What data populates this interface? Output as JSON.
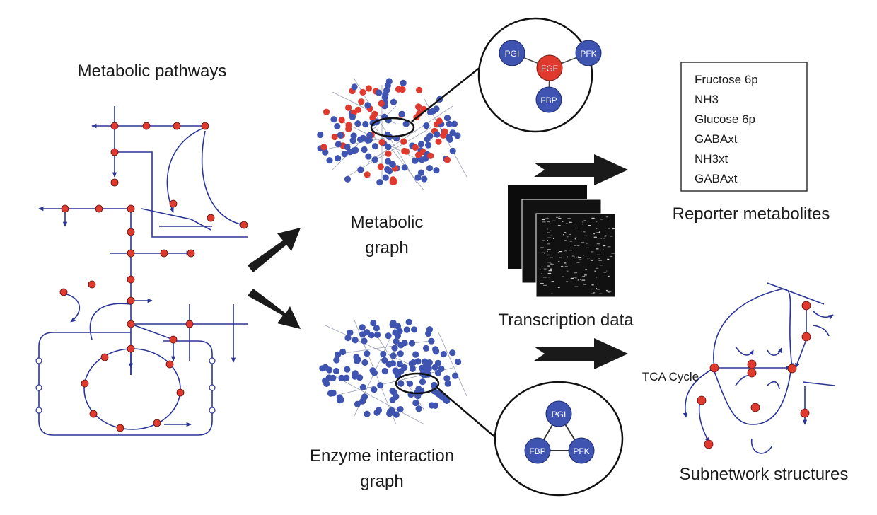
{
  "panels": {
    "metabolic_pathways": "Metabolic pathways",
    "metabolic_graph": [
      "Metabolic",
      "graph"
    ],
    "enzyme_graph": [
      "Enzyme interaction",
      "graph"
    ],
    "transcription": "Transcription data",
    "reporter": "Reporter metabolites",
    "subnetwork": "Subnetwork structures",
    "tca": "TCA Cycle"
  },
  "reporter_list": [
    "Fructose 6p",
    "NH3",
    "Glucose 6p",
    "GABAxt",
    "NH3xt",
    "GABAxt"
  ],
  "zoom_top": {
    "center": "FGF",
    "nodes": [
      "PGI",
      "PFK",
      "FBP"
    ]
  },
  "zoom_bottom": {
    "nodes": [
      "PGI",
      "FBP",
      "PFK"
    ]
  },
  "colors": {
    "pathway": "#2b3596",
    "metabolite": "#e03a2e",
    "enzyme": "#3f54b0",
    "arrow": "#1a1a1a"
  }
}
